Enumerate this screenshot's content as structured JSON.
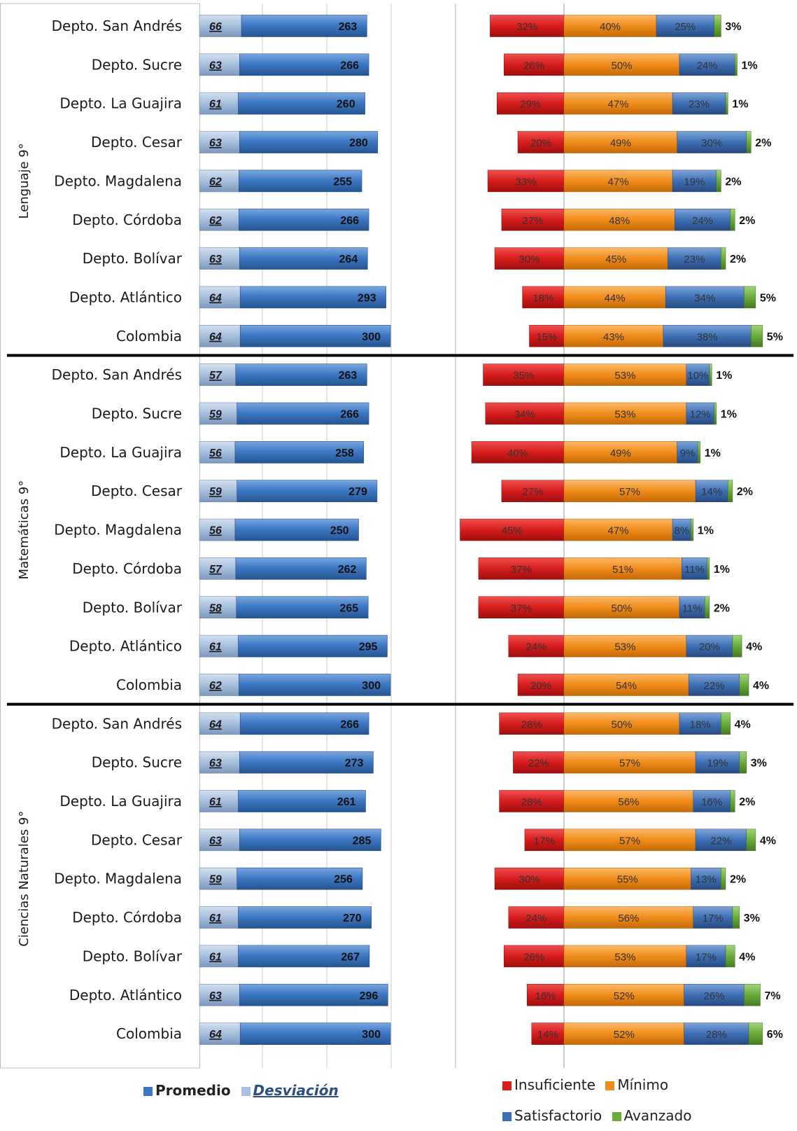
{
  "chart_data": {
    "type": "bar",
    "groups": [
      {
        "label": "Lenguaje 9°",
        "rows": [
          {
            "name": "Depto. San Andrés",
            "promedio": 263,
            "desviacion": 66,
            "insuficiente": 32,
            "minimo": 40,
            "satisfactorio": 25,
            "avanzado": 3
          },
          {
            "name": "Depto. Sucre",
            "promedio": 266,
            "desviacion": 63,
            "insuficiente": 26,
            "minimo": 50,
            "satisfactorio": 24,
            "avanzado": 1
          },
          {
            "name": "Depto. La Guajira",
            "promedio": 260,
            "desviacion": 61,
            "insuficiente": 29,
            "minimo": 47,
            "satisfactorio": 23,
            "avanzado": 1
          },
          {
            "name": "Depto. Cesar",
            "promedio": 280,
            "desviacion": 63,
            "insuficiente": 20,
            "minimo": 49,
            "satisfactorio": 30,
            "avanzado": 2
          },
          {
            "name": "Depto. Magdalena",
            "promedio": 255,
            "desviacion": 62,
            "insuficiente": 33,
            "minimo": 47,
            "satisfactorio": 19,
            "avanzado": 2
          },
          {
            "name": "Depto. Córdoba",
            "promedio": 266,
            "desviacion": 62,
            "insuficiente": 27,
            "minimo": 48,
            "satisfactorio": 24,
            "avanzado": 2
          },
          {
            "name": "Depto. Bolívar",
            "promedio": 264,
            "desviacion": 63,
            "insuficiente": 30,
            "minimo": 45,
            "satisfactorio": 23,
            "avanzado": 2
          },
          {
            "name": "Depto. Atlántico",
            "promedio": 293,
            "desviacion": 64,
            "insuficiente": 18,
            "minimo": 44,
            "satisfactorio": 34,
            "avanzado": 5
          },
          {
            "name": "Colombia",
            "promedio": 300,
            "desviacion": 64,
            "insuficiente": 15,
            "minimo": 43,
            "satisfactorio": 38,
            "avanzado": 5
          }
        ]
      },
      {
        "label": "Matemáticas 9°",
        "rows": [
          {
            "name": "Depto. San Andrés",
            "promedio": 263,
            "desviacion": 57,
            "insuficiente": 35,
            "minimo": 53,
            "satisfactorio": 10,
            "avanzado": 1
          },
          {
            "name": "Depto. Sucre",
            "promedio": 266,
            "desviacion": 59,
            "insuficiente": 34,
            "minimo": 53,
            "satisfactorio": 12,
            "avanzado": 1
          },
          {
            "name": "Depto. La Guajira",
            "promedio": 258,
            "desviacion": 56,
            "insuficiente": 40,
            "minimo": 49,
            "satisfactorio": 9,
            "avanzado": 1
          },
          {
            "name": "Depto. Cesar",
            "promedio": 279,
            "desviacion": 59,
            "insuficiente": 27,
            "minimo": 57,
            "satisfactorio": 14,
            "avanzado": 2
          },
          {
            "name": "Depto. Magdalena",
            "promedio": 250,
            "desviacion": 56,
            "insuficiente": 45,
            "minimo": 47,
            "satisfactorio": 8,
            "avanzado": 1
          },
          {
            "name": "Depto. Córdoba",
            "promedio": 262,
            "desviacion": 57,
            "insuficiente": 37,
            "minimo": 51,
            "satisfactorio": 11,
            "avanzado": 1
          },
          {
            "name": "Depto. Bolívar",
            "promedio": 265,
            "desviacion": 58,
            "insuficiente": 37,
            "minimo": 50,
            "satisfactorio": 11,
            "avanzado": 2
          },
          {
            "name": "Depto. Atlántico",
            "promedio": 295,
            "desviacion": 61,
            "insuficiente": 24,
            "minimo": 53,
            "satisfactorio": 20,
            "avanzado": 4
          },
          {
            "name": "Colombia",
            "promedio": 300,
            "desviacion": 62,
            "insuficiente": 20,
            "minimo": 54,
            "satisfactorio": 22,
            "avanzado": 4
          }
        ]
      },
      {
        "label": "Ciencias Naturales 9°",
        "rows": [
          {
            "name": "Depto. San Andrés",
            "promedio": 266,
            "desviacion": 64,
            "insuficiente": 28,
            "minimo": 50,
            "satisfactorio": 18,
            "avanzado": 4
          },
          {
            "name": "Depto. Sucre",
            "promedio": 273,
            "desviacion": 63,
            "insuficiente": 22,
            "minimo": 57,
            "satisfactorio": 19,
            "avanzado": 3
          },
          {
            "name": "Depto. La Guajira",
            "promedio": 261,
            "desviacion": 61,
            "insuficiente": 28,
            "minimo": 56,
            "satisfactorio": 16,
            "avanzado": 2
          },
          {
            "name": "Depto. Cesar",
            "promedio": 285,
            "desviacion": 63,
            "insuficiente": 17,
            "minimo": 57,
            "satisfactorio": 22,
            "avanzado": 4
          },
          {
            "name": "Depto. Magdalena",
            "promedio": 256,
            "desviacion": 59,
            "insuficiente": 30,
            "minimo": 55,
            "satisfactorio": 13,
            "avanzado": 2
          },
          {
            "name": "Depto. Córdoba",
            "promedio": 270,
            "desviacion": 61,
            "insuficiente": 24,
            "minimo": 56,
            "satisfactorio": 17,
            "avanzado": 3
          },
          {
            "name": "Depto. Bolívar",
            "promedio": 267,
            "desviacion": 61,
            "insuficiente": 26,
            "minimo": 53,
            "satisfactorio": 17,
            "avanzado": 4
          },
          {
            "name": "Depto. Atlántico",
            "promedio": 296,
            "desviacion": 63,
            "insuficiente": 16,
            "minimo": 52,
            "satisfactorio": 26,
            "avanzado": 7
          },
          {
            "name": "Colombia",
            "promedio": 300,
            "desviacion": 64,
            "insuficiente": 14,
            "minimo": 52,
            "satisfactorio": 28,
            "avanzado": 6
          }
        ]
      }
    ],
    "left_series": [
      {
        "key": "desviacion",
        "name": "Desviación",
        "color": "#a9c1e0"
      },
      {
        "key": "promedio",
        "name": "Promedio",
        "color": "#3e78c4"
      }
    ],
    "right_series": [
      {
        "key": "insuficiente",
        "name": "Insuficiente",
        "color": "#d81e1e"
      },
      {
        "key": "minimo",
        "name": "Mínimo",
        "color": "#f08c1a"
      },
      {
        "key": "satisfactorio",
        "name": "Satisfactorio",
        "color": "#3e6fb5"
      },
      {
        "key": "avanzado",
        "name": "Avanzado",
        "color": "#6aab3c"
      }
    ],
    "legend_position": "bottom",
    "grid": true
  },
  "legend": {
    "promedio": "Promedio",
    "desviacion": "Desviación",
    "insuficiente": "Insuficiente",
    "minimo": "Mínimo",
    "satisfactorio": "Satisfactorio",
    "avanzado": "Avanzado"
  }
}
